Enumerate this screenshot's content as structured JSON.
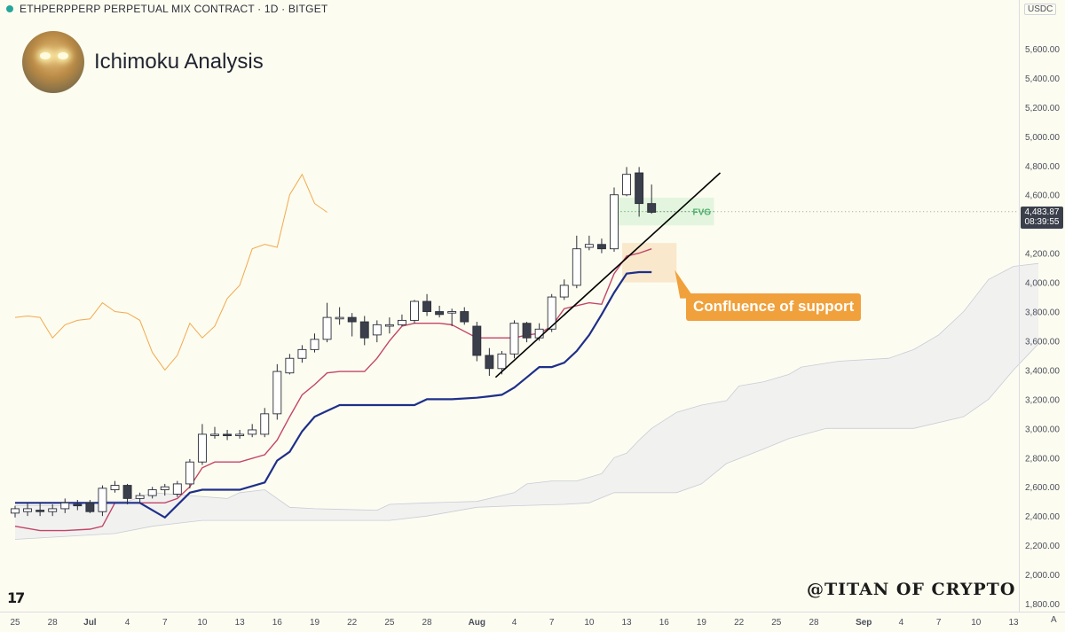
{
  "header": {
    "symbol_title": "ETHPERPPERP PERPETUAL MIX CONTRACT · 1D · BITGET",
    "analysis_title": "Ichimoku Analysis",
    "currency": "USDC"
  },
  "price_tag": {
    "value": "4,483.87",
    "countdown": "08:39:55"
  },
  "annotations": {
    "fvg_label": "FVG",
    "confluence_label": "Confluence of support",
    "watermark": "@TITAN OF CRYPTO",
    "axis_toggle": "A"
  },
  "colors": {
    "background": "#fdfcf0",
    "bull_candle": "#ffffff",
    "bear_candle": "#3a3f4b",
    "kijun": "#1e2f8a",
    "tenkan": "#c2456a",
    "chikou": "#f0a13c",
    "cloud": "#ecedf0",
    "fvg": "#cdeecf",
    "confluence": "#f7e2c0",
    "trendline": "#000000"
  },
  "chart_data": {
    "type": "candlestick",
    "timeframe": "1D",
    "y_axis": {
      "ylim": [
        1780,
        5840
      ],
      "ticks": [
        1800,
        2000,
        2200,
        2400,
        2600,
        2800,
        3000,
        3200,
        3400,
        3600,
        3800,
        4000,
        4200,
        4400,
        4600,
        4800,
        5000,
        5200,
        5400,
        5600
      ],
      "tick_labels": [
        "1,800.00",
        "2,000.00",
        "2,200.00",
        "2,400.00",
        "2,600.00",
        "2,800.00",
        "3,000.00",
        "3,200.00",
        "3,400.00",
        "3,600.00",
        "3,800.00",
        "4,000.00",
        "4,200.00",
        "4,400.00",
        "4,600.00",
        "4,800.00",
        "5,000.00",
        "5,200.00",
        "5,400.00",
        "5,600.00"
      ]
    },
    "x_axis": {
      "ticks": [
        {
          "day": 0,
          "label": "25"
        },
        {
          "day": 3,
          "label": "28"
        },
        {
          "day": 6,
          "label": "Jul"
        },
        {
          "day": 9,
          "label": "4"
        },
        {
          "day": 12,
          "label": "7"
        },
        {
          "day": 15,
          "label": "10"
        },
        {
          "day": 18,
          "label": "13"
        },
        {
          "day": 21,
          "label": "16"
        },
        {
          "day": 24,
          "label": "19"
        },
        {
          "day": 27,
          "label": "22"
        },
        {
          "day": 30,
          "label": "25"
        },
        {
          "day": 33,
          "label": "28"
        },
        {
          "day": 37,
          "label": "Aug"
        },
        {
          "day": 40,
          "label": "4"
        },
        {
          "day": 43,
          "label": "7"
        },
        {
          "day": 46,
          "label": "10"
        },
        {
          "day": 49,
          "label": "13"
        },
        {
          "day": 52,
          "label": "16"
        },
        {
          "day": 55,
          "label": "19"
        },
        {
          "day": 58,
          "label": "22"
        },
        {
          "day": 61,
          "label": "25"
        },
        {
          "day": 64,
          "label": "28"
        },
        {
          "day": 68,
          "label": "Sep"
        },
        {
          "day": 71,
          "label": "4"
        },
        {
          "day": 74,
          "label": "7"
        },
        {
          "day": 77,
          "label": "10"
        },
        {
          "day": 80,
          "label": "13"
        }
      ]
    },
    "candles": [
      {
        "day": 0,
        "o": 2420,
        "h": 2470,
        "l": 2390,
        "c": 2450
      },
      {
        "day": 1,
        "o": 2430,
        "h": 2490,
        "l": 2400,
        "c": 2450
      },
      {
        "day": 2,
        "o": 2440,
        "h": 2490,
        "l": 2400,
        "c": 2430
      },
      {
        "day": 3,
        "o": 2430,
        "h": 2480,
        "l": 2400,
        "c": 2450
      },
      {
        "day": 4,
        "o": 2450,
        "h": 2520,
        "l": 2420,
        "c": 2490
      },
      {
        "day": 5,
        "o": 2480,
        "h": 2510,
        "l": 2440,
        "c": 2470
      },
      {
        "day": 6,
        "o": 2490,
        "h": 2510,
        "l": 2420,
        "c": 2430
      },
      {
        "day": 7,
        "o": 2430,
        "h": 2610,
        "l": 2400,
        "c": 2590
      },
      {
        "day": 8,
        "o": 2580,
        "h": 2640,
        "l": 2560,
        "c": 2610
      },
      {
        "day": 9,
        "o": 2610,
        "h": 2620,
        "l": 2480,
        "c": 2520
      },
      {
        "day": 10,
        "o": 2520,
        "h": 2560,
        "l": 2490,
        "c": 2540
      },
      {
        "day": 11,
        "o": 2540,
        "h": 2600,
        "l": 2520,
        "c": 2580
      },
      {
        "day": 12,
        "o": 2580,
        "h": 2620,
        "l": 2540,
        "c": 2600
      },
      {
        "day": 13,
        "o": 2550,
        "h": 2640,
        "l": 2530,
        "c": 2620
      },
      {
        "day": 14,
        "o": 2620,
        "h": 2790,
        "l": 2590,
        "c": 2770
      },
      {
        "day": 15,
        "o": 2770,
        "h": 3030,
        "l": 2750,
        "c": 2960
      },
      {
        "day": 16,
        "o": 2960,
        "h": 3010,
        "l": 2930,
        "c": 2960
      },
      {
        "day": 17,
        "o": 2960,
        "h": 2990,
        "l": 2920,
        "c": 2950
      },
      {
        "day": 18,
        "o": 2950,
        "h": 2990,
        "l": 2930,
        "c": 2960
      },
      {
        "day": 19,
        "o": 2960,
        "h": 3030,
        "l": 2940,
        "c": 2990
      },
      {
        "day": 20,
        "o": 2960,
        "h": 3140,
        "l": 2940,
        "c": 3100
      },
      {
        "day": 21,
        "o": 3100,
        "h": 3440,
        "l": 3060,
        "c": 3390
      },
      {
        "day": 22,
        "o": 3380,
        "h": 3510,
        "l": 3370,
        "c": 3480
      },
      {
        "day": 23,
        "o": 3480,
        "h": 3570,
        "l": 3450,
        "c": 3540
      },
      {
        "day": 24,
        "o": 3540,
        "h": 3650,
        "l": 3520,
        "c": 3610
      },
      {
        "day": 25,
        "o": 3610,
        "h": 3860,
        "l": 3590,
        "c": 3760
      },
      {
        "day": 26,
        "o": 3750,
        "h": 3830,
        "l": 3710,
        "c": 3760
      },
      {
        "day": 27,
        "o": 3760,
        "h": 3790,
        "l": 3630,
        "c": 3730
      },
      {
        "day": 28,
        "o": 3730,
        "h": 3770,
        "l": 3570,
        "c": 3620
      },
      {
        "day": 29,
        "o": 3640,
        "h": 3740,
        "l": 3590,
        "c": 3710
      },
      {
        "day": 30,
        "o": 3700,
        "h": 3760,
        "l": 3650,
        "c": 3710
      },
      {
        "day": 31,
        "o": 3710,
        "h": 3780,
        "l": 3700,
        "c": 3740
      },
      {
        "day": 32,
        "o": 3740,
        "h": 3880,
        "l": 3720,
        "c": 3870
      },
      {
        "day": 33,
        "o": 3870,
        "h": 3920,
        "l": 3770,
        "c": 3800
      },
      {
        "day": 34,
        "o": 3800,
        "h": 3840,
        "l": 3760,
        "c": 3780
      },
      {
        "day": 35,
        "o": 3790,
        "h": 3820,
        "l": 3700,
        "c": 3800
      },
      {
        "day": 36,
        "o": 3800,
        "h": 3830,
        "l": 3710,
        "c": 3730
      },
      {
        "day": 37,
        "o": 3700,
        "h": 3730,
        "l": 3460,
        "c": 3500
      },
      {
        "day": 38,
        "o": 3500,
        "h": 3550,
        "l": 3360,
        "c": 3410
      },
      {
        "day": 39,
        "o": 3410,
        "h": 3530,
        "l": 3370,
        "c": 3510
      },
      {
        "day": 40,
        "o": 3510,
        "h": 3740,
        "l": 3480,
        "c": 3720
      },
      {
        "day": 41,
        "o": 3720,
        "h": 3730,
        "l": 3590,
        "c": 3620
      },
      {
        "day": 42,
        "o": 3620,
        "h": 3720,
        "l": 3600,
        "c": 3680
      },
      {
        "day": 43,
        "o": 3680,
        "h": 3920,
        "l": 3660,
        "c": 3900
      },
      {
        "day": 44,
        "o": 3900,
        "h": 4020,
        "l": 3880,
        "c": 3980
      },
      {
        "day": 45,
        "o": 3980,
        "h": 4320,
        "l": 3960,
        "c": 4230
      },
      {
        "day": 46,
        "o": 4240,
        "h": 4320,
        "l": 4220,
        "c": 4260
      },
      {
        "day": 47,
        "o": 4260,
        "h": 4300,
        "l": 4200,
        "c": 4230
      },
      {
        "day": 48,
        "o": 4230,
        "h": 4650,
        "l": 4210,
        "c": 4600
      },
      {
        "day": 49,
        "o": 4600,
        "h": 4790,
        "l": 4590,
        "c": 4740
      },
      {
        "day": 50,
        "o": 4750,
        "h": 4790,
        "l": 4450,
        "c": 4540
      },
      {
        "day": 51,
        "o": 4540,
        "h": 4670,
        "l": 4470,
        "c": 4480
      }
    ],
    "series": [
      {
        "name": "tenkan",
        "points": [
          [
            0,
            2330
          ],
          [
            2,
            2300
          ],
          [
            4,
            2300
          ],
          [
            6,
            2310
          ],
          [
            7,
            2330
          ],
          [
            8,
            2490
          ],
          [
            12,
            2490
          ],
          [
            13,
            2520
          ],
          [
            14,
            2600
          ],
          [
            15,
            2730
          ],
          [
            16,
            2770
          ],
          [
            18,
            2770
          ],
          [
            20,
            2820
          ],
          [
            21,
            2920
          ],
          [
            22,
            3080
          ],
          [
            23,
            3230
          ],
          [
            24,
            3300
          ],
          [
            25,
            3380
          ],
          [
            26,
            3390
          ],
          [
            28,
            3390
          ],
          [
            29,
            3480
          ],
          [
            30,
            3600
          ],
          [
            31,
            3700
          ],
          [
            32,
            3720
          ],
          [
            34,
            3720
          ],
          [
            35,
            3710
          ],
          [
            37,
            3620
          ],
          [
            38,
            3620
          ],
          [
            40,
            3620
          ],
          [
            41,
            3640
          ],
          [
            42,
            3650
          ],
          [
            43,
            3700
          ],
          [
            44,
            3820
          ],
          [
            46,
            3860
          ],
          [
            47,
            3850
          ],
          [
            48,
            4060
          ],
          [
            49,
            4180
          ],
          [
            50,
            4200
          ],
          [
            51,
            4230
          ]
        ]
      },
      {
        "name": "kijun",
        "points": [
          [
            0,
            2490
          ],
          [
            6,
            2490
          ],
          [
            10,
            2490
          ],
          [
            12,
            2390
          ],
          [
            14,
            2560
          ],
          [
            15,
            2580
          ],
          [
            18,
            2580
          ],
          [
            20,
            2630
          ],
          [
            21,
            2780
          ],
          [
            22,
            2840
          ],
          [
            23,
            2980
          ],
          [
            24,
            3080
          ],
          [
            25,
            3120
          ],
          [
            26,
            3160
          ],
          [
            32,
            3160
          ],
          [
            33,
            3200
          ],
          [
            35,
            3200
          ],
          [
            37,
            3210
          ],
          [
            38,
            3220
          ],
          [
            39,
            3230
          ],
          [
            40,
            3280
          ],
          [
            41,
            3350
          ],
          [
            42,
            3420
          ],
          [
            43,
            3420
          ],
          [
            44,
            3450
          ],
          [
            45,
            3530
          ],
          [
            46,
            3640
          ],
          [
            47,
            3780
          ],
          [
            48,
            3930
          ],
          [
            49,
            4060
          ],
          [
            50,
            4070
          ],
          [
            51,
            4070
          ]
        ]
      },
      {
        "name": "chikou",
        "points": [
          [
            0,
            3760
          ],
          [
            1,
            3770
          ],
          [
            2,
            3760
          ],
          [
            3,
            3620
          ],
          [
            4,
            3710
          ],
          [
            5,
            3740
          ],
          [
            6,
            3750
          ],
          [
            7,
            3860
          ],
          [
            8,
            3800
          ],
          [
            9,
            3790
          ],
          [
            10,
            3740
          ],
          [
            11,
            3520
          ],
          [
            12,
            3400
          ],
          [
            13,
            3500
          ],
          [
            14,
            3720
          ],
          [
            15,
            3620
          ],
          [
            16,
            3700
          ],
          [
            17,
            3890
          ],
          [
            18,
            3980
          ],
          [
            19,
            4230
          ],
          [
            20,
            4260
          ],
          [
            21,
            4240
          ],
          [
            22,
            4600
          ],
          [
            23,
            4740
          ],
          [
            24,
            4540
          ],
          [
            25,
            4480
          ]
        ]
      },
      {
        "name": "senkou_a",
        "points": [
          [
            0,
            2470
          ],
          [
            4,
            2470
          ],
          [
            7,
            2500
          ],
          [
            9,
            2500
          ],
          [
            11,
            2560
          ],
          [
            14,
            2540
          ],
          [
            17,
            2520
          ],
          [
            18,
            2560
          ],
          [
            20,
            2580
          ],
          [
            22,
            2460
          ],
          [
            24,
            2450
          ],
          [
            29,
            2440
          ],
          [
            30,
            2480
          ],
          [
            33,
            2490
          ],
          [
            37,
            2500
          ],
          [
            40,
            2560
          ],
          [
            41,
            2620
          ],
          [
            43,
            2640
          ],
          [
            45,
            2640
          ],
          [
            47,
            2690
          ],
          [
            48,
            2800
          ],
          [
            49,
            2830
          ],
          [
            50,
            2920
          ],
          [
            51,
            3000
          ],
          [
            53,
            3110
          ],
          [
            55,
            3160
          ],
          [
            57,
            3190
          ],
          [
            58,
            3290
          ],
          [
            60,
            3320
          ],
          [
            62,
            3370
          ],
          [
            63,
            3420
          ],
          [
            66,
            3460
          ],
          [
            70,
            3480
          ],
          [
            72,
            3540
          ],
          [
            74,
            3640
          ],
          [
            76,
            3800
          ],
          [
            78,
            4020
          ],
          [
            80,
            4110
          ],
          [
            82,
            4130
          ]
        ]
      },
      {
        "name": "senkou_b",
        "points": [
          [
            0,
            2240
          ],
          [
            8,
            2280
          ],
          [
            11,
            2330
          ],
          [
            13,
            2350
          ],
          [
            15,
            2370
          ],
          [
            30,
            2370
          ],
          [
            33,
            2400
          ],
          [
            37,
            2460
          ],
          [
            40,
            2470
          ],
          [
            44,
            2480
          ],
          [
            46,
            2490
          ],
          [
            48,
            2560
          ],
          [
            50,
            2560
          ],
          [
            53,
            2560
          ],
          [
            55,
            2620
          ],
          [
            57,
            2760
          ],
          [
            60,
            2860
          ],
          [
            62,
            2930
          ],
          [
            65,
            3000
          ],
          [
            68,
            3000
          ],
          [
            72,
            3000
          ],
          [
            76,
            3080
          ],
          [
            78,
            3200
          ],
          [
            80,
            3400
          ],
          [
            82,
            3580
          ]
        ]
      }
    ],
    "zones": [
      {
        "name": "FVG",
        "day_start": 48,
        "day_end": 56,
        "price_low": 4390,
        "price_high": 4580
      },
      {
        "name": "Confluence of support",
        "day_start": 49,
        "day_end": 53,
        "price_low": 4000,
        "price_high": 4270
      }
    ],
    "trendline": {
      "from": [
        38.5,
        3350
      ],
      "to": [
        56.5,
        4750
      ]
    },
    "last_price": 4483.87
  }
}
